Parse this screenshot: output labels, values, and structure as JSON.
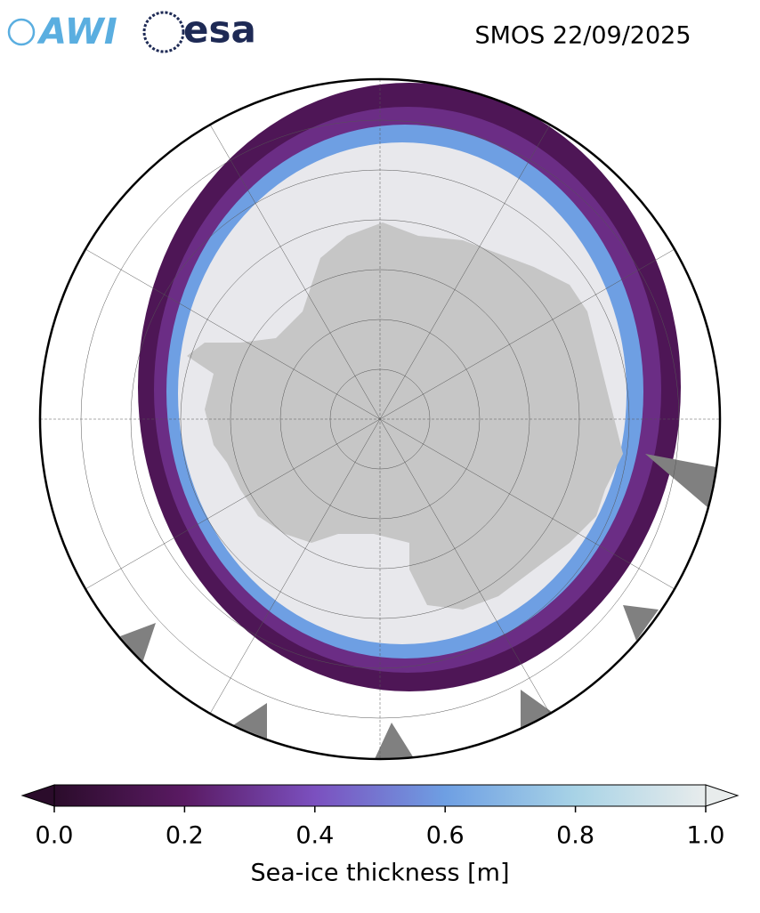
{
  "header": {
    "logos": [
      "AWI",
      "esa"
    ],
    "title": "SMOS 22/09/2025"
  },
  "colorbar": {
    "label": "Sea-ice thickness [m]",
    "lim": [
      0,
      1
    ],
    "ticks": [
      {
        "value": 0,
        "label": "0.0"
      },
      {
        "value": 0.2,
        "label": "0.2"
      },
      {
        "value": 0.4,
        "label": "0.4"
      },
      {
        "value": 0.6,
        "label": "0.6"
      },
      {
        "value": 0.8,
        "label": "0.8"
      },
      {
        "value": 1,
        "label": "1.0"
      }
    ],
    "colors": [
      "#2b0c2b",
      "#5a1a63",
      "#7b50bf",
      "#6e9fe3",
      "#a8d3e6",
      "#e8ecec"
    ]
  }
}
